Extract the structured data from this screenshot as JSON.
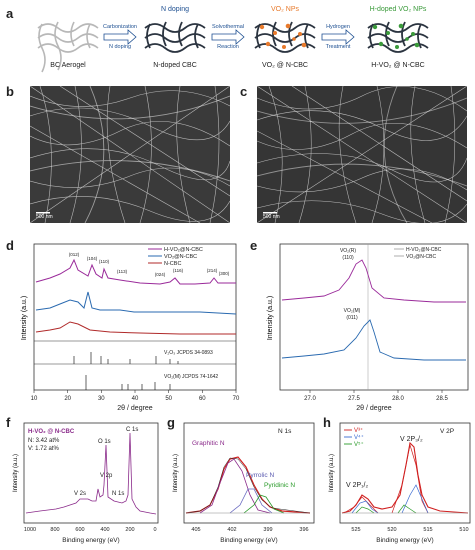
{
  "panels": {
    "a": "a",
    "b": "b",
    "c": "c",
    "d": "d",
    "e": "e",
    "f": "f",
    "g": "g",
    "h": "h"
  },
  "schematic": {
    "stages": [
      "BC Aerogel",
      "N-doped CBC",
      "VO₂ @ N-CBC",
      "H-VO₂ @ N-CBC"
    ],
    "top_labels": [
      "N doping",
      "VO₂ NPs",
      "H-doped VO₂ NPs"
    ],
    "arrow1": [
      "Carbonization",
      "N doping"
    ],
    "arrow2": [
      "Solvothermal",
      "Reaction"
    ],
    "arrow3": [
      "Hydrogen",
      "Treatment"
    ],
    "colors": {
      "gray": "#b8b8b8",
      "dark": "#2b3440",
      "orange": "#e87a2c",
      "green": "#3a9a3a"
    }
  },
  "sem": {
    "b_scale": "500 nm",
    "c_scale": "500 nm"
  },
  "xrd_d": {
    "legend": [
      "H-VO₂@N-CBC",
      "VO₂@N-CBC",
      "N-CBC"
    ],
    "peaks": [
      "(012)",
      "(104)",
      "(110)",
      "(113)",
      "(024)",
      "(116)",
      "(214)",
      "(300)"
    ],
    "ref1": "V₂O₃  JCPDS 34-0893",
    "ref2": "VO₂(M)  JCPDS 74-1642",
    "xlabel": "2θ / degree",
    "ylabel": "Intensity (a.u.)",
    "xticks": [
      "10",
      "20",
      "30",
      "40",
      "50",
      "60",
      "70"
    ],
    "colors": {
      "purple": "#9a2a9a",
      "blue": "#2a6ab0",
      "red": "#b02a2a"
    }
  },
  "xrd_e": {
    "legend": [
      "H-VO₂@N-CBC",
      "VO₂@N-CBC"
    ],
    "ann_top": [
      "VO₂(R)",
      "(110)"
    ],
    "ann_bot": [
      "VO₂(M)",
      "(011)"
    ],
    "xlabel": "2θ / degree",
    "ylabel": "Intensity (a.u.)",
    "xticks": [
      "27.0",
      "27.5",
      "28.0",
      "28.5"
    ]
  },
  "xps_f": {
    "title": "H-VO₂ @ N-CBC",
    "n_line": "N:  3.42  at%",
    "v_line": "V:  1.72  at%",
    "peaks": [
      "O 1s",
      "C 1s",
      "V 2p",
      "V 2s",
      "N 1s"
    ],
    "xlabel": "Binding energy (eV)",
    "ylabel": "Intensity (a.u.)",
    "xticks": [
      "1000",
      "800",
      "600",
      "400",
      "200",
      "0"
    ]
  },
  "xps_g": {
    "title": "N 1s",
    "labels": [
      "Graphitic N",
      "Pyrrolic N",
      "Pyridinic N"
    ],
    "xlabel": "Binding energy (eV)",
    "ylabel": "Intensity (a.u.)",
    "xticks": [
      "405",
      "402",
      "399",
      "396"
    ]
  },
  "xps_h": {
    "title": "V 2P",
    "legend": [
      "V³⁺",
      "V⁴⁺",
      "V⁵⁺"
    ],
    "p12": "V 2P₁/₂",
    "p32": "V 2P₃/₂",
    "xlabel": "Binding energy (eV)",
    "ylabel": "Intensity (a.u.)",
    "xticks": [
      "525",
      "520",
      "515",
      "510"
    ]
  }
}
